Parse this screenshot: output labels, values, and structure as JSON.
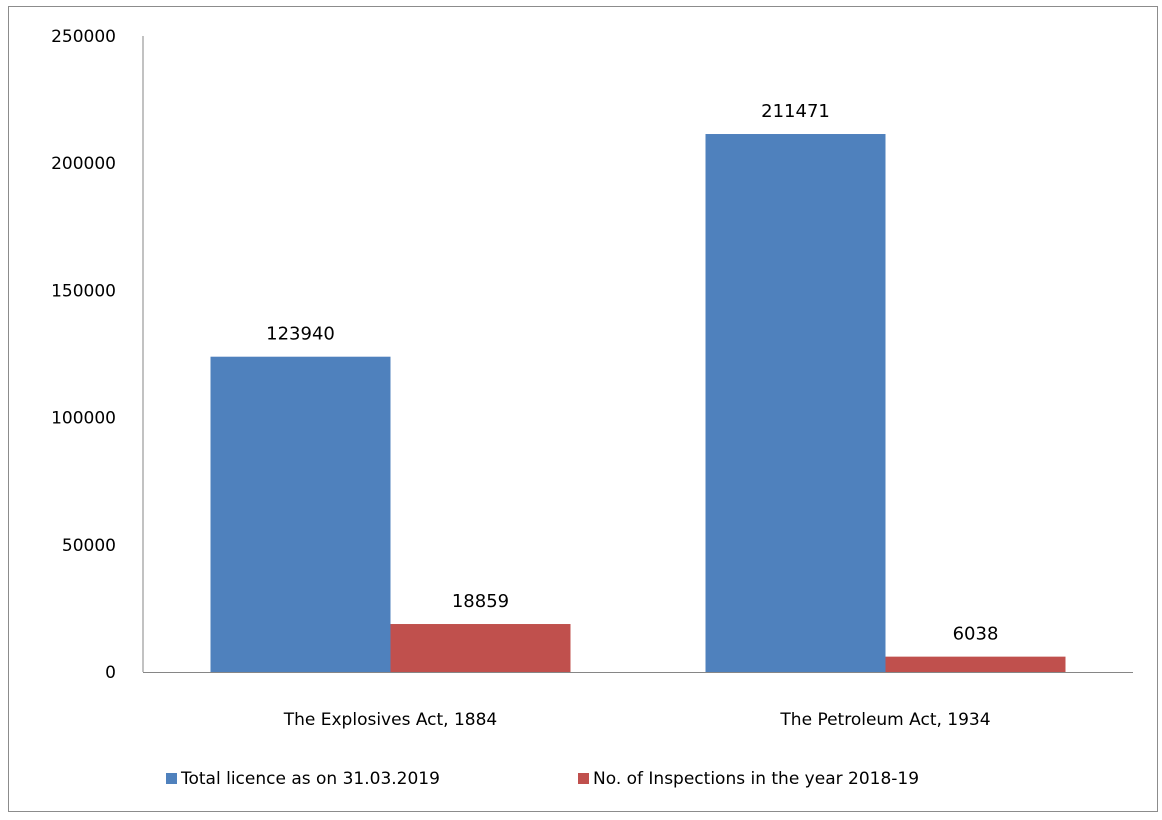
{
  "chart_data": {
    "type": "bar",
    "title": "",
    "xlabel": "",
    "ylabel": "",
    "categories": [
      "The Explosives Act, 1884",
      "The Petroleum Act, 1934"
    ],
    "series": [
      {
        "name": "Total licence as on 31.03.2019",
        "color": "#4f81bd",
        "values": [
          123940,
          211471
        ],
        "labels": [
          "123940",
          "211471"
        ]
      },
      {
        "name": "No. of Inspections in the year 2018-19",
        "color": "#c0504d",
        "values": [
          18859,
          6038
        ],
        "labels": [
          "18859",
          "6038"
        ]
      }
    ],
    "ylim": [
      0,
      250000
    ],
    "yticks": [
      0,
      50000,
      100000,
      150000,
      200000,
      250000
    ],
    "ytick_labels": [
      "0",
      "50000",
      "100000",
      "150000",
      "200000",
      "250000"
    ],
    "grid": false,
    "legend_position": "bottom"
  }
}
